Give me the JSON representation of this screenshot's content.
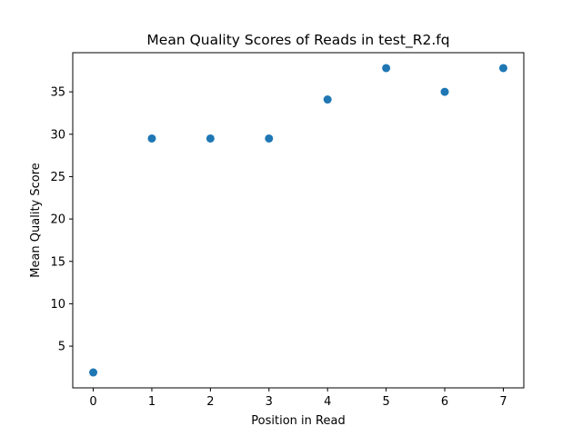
{
  "chart_data": {
    "type": "scatter",
    "title": "Mean Quality Scores of Reads in test_R2.fq",
    "xlabel": "Position in Read",
    "ylabel": "Mean Quality Score",
    "x": [
      0,
      1,
      2,
      3,
      4,
      5,
      6,
      7
    ],
    "y": [
      1.9,
      29.5,
      29.5,
      29.5,
      34.1,
      37.8,
      35.0,
      37.8
    ],
    "xlim": [
      -0.35,
      7.35
    ],
    "ylim": [
      0.08,
      39.62
    ],
    "xticks": [
      0,
      1,
      2,
      3,
      4,
      5,
      6,
      7
    ],
    "yticks": [
      5,
      10,
      15,
      20,
      25,
      30,
      35
    ],
    "grid": false,
    "marker_color": "#1f77b4"
  }
}
